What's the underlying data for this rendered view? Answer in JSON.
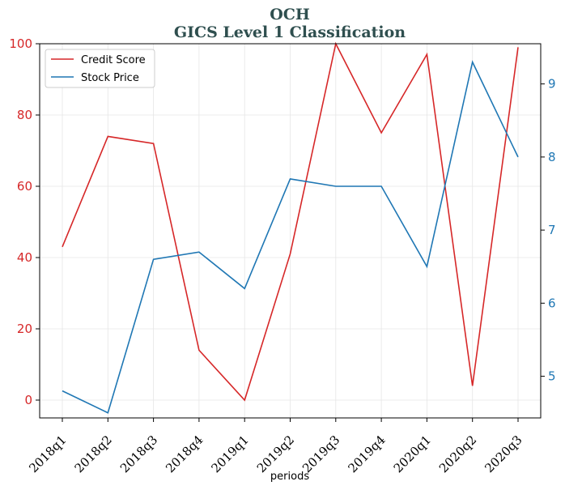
{
  "chart_data": {
    "type": "line",
    "title": "OCH",
    "subtitle": "GICS Level 1 Classification",
    "xlabel": "periods",
    "categories": [
      "2018q1",
      "2018q2",
      "2018q3",
      "2018q4",
      "2019q1",
      "2019q2",
      "2019q3",
      "2019q4",
      "2020q1",
      "2020q2",
      "2020q3"
    ],
    "left_axis": {
      "ylim": [
        -5,
        100
      ],
      "ticks": [
        0,
        20,
        40,
        60,
        80,
        100
      ],
      "color": "#d62728"
    },
    "right_axis": {
      "ylim": [
        4.43,
        9.55
      ],
      "ticks": [
        5,
        6,
        7,
        8,
        9
      ],
      "color": "#1f77b4"
    },
    "series": [
      {
        "name": "Credit Score",
        "axis": "left",
        "color": "#d62728",
        "values": [
          43,
          74,
          72,
          14,
          0,
          41,
          100,
          75,
          97,
          4,
          99
        ]
      },
      {
        "name": "Stock Price",
        "axis": "right",
        "color": "#1f77b4",
        "values": [
          4.8,
          4.5,
          6.6,
          6.7,
          6.2,
          7.7,
          7.6,
          7.6,
          6.5,
          9.3,
          8.0
        ]
      }
    ],
    "grid": true,
    "legend": "top-left"
  }
}
